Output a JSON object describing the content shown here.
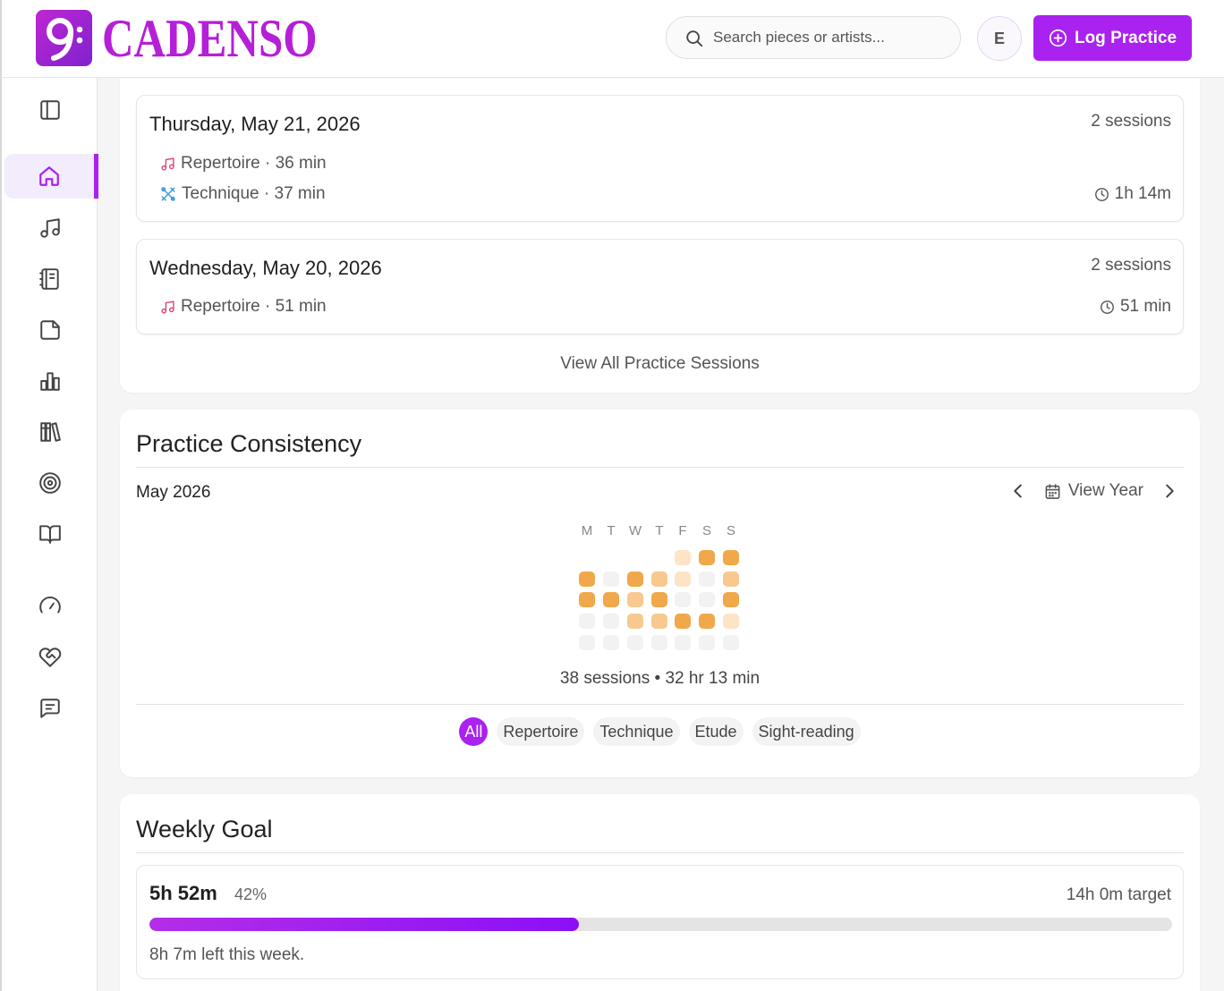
{
  "app": {
    "name": "CADENSO"
  },
  "header": {
    "search_placeholder": "Search pieces or artists...",
    "avatar_initial": "E",
    "log_button_label": "Log Practice"
  },
  "sidebar": {
    "items": [
      {
        "name": "sidebar-toggle",
        "icon": "panel-left-icon"
      },
      {
        "name": "home",
        "icon": "home-icon",
        "active": true
      },
      {
        "name": "repertoire",
        "icon": "music-note-icon"
      },
      {
        "name": "journal",
        "icon": "notebook-icon"
      },
      {
        "name": "notes",
        "icon": "sticky-note-icon"
      },
      {
        "name": "stats",
        "icon": "bar-chart-icon"
      },
      {
        "name": "library",
        "icon": "library-icon"
      },
      {
        "name": "goals",
        "icon": "target-icon"
      },
      {
        "name": "learn",
        "icon": "book-open-icon"
      },
      {
        "name": "metronome",
        "icon": "gauge-icon"
      },
      {
        "name": "favorites",
        "icon": "heart-handshake-icon"
      },
      {
        "name": "feedback",
        "icon": "message-icon"
      }
    ]
  },
  "sessions": [
    {
      "date": "Thursday, May 21, 2026",
      "count": "2 sessions",
      "lines": [
        {
          "category": "Repertoire",
          "text": "Repertoire · 36 min",
          "icon": "music-note-icon"
        },
        {
          "category": "Technique",
          "text": "Technique · 37 min",
          "icon": "tools-icon"
        }
      ],
      "total": "1h 14m"
    },
    {
      "date": "Wednesday, May 20, 2026",
      "count": "2 sessions",
      "lines": [
        {
          "category": "Repertoire",
          "text": "Repertoire · 51 min",
          "icon": "music-note-icon"
        }
      ],
      "total": "51 min"
    }
  ],
  "view_all_label": "View All Practice Sessions",
  "consistency": {
    "title": "Practice Consistency",
    "month": "May 2026",
    "view_year_label": "View Year",
    "day_labels": [
      "M",
      "T",
      "W",
      "T",
      "F",
      "S",
      "S"
    ],
    "levels": [
      [
        null,
        null,
        null,
        null,
        1,
        3,
        3
      ],
      [
        3,
        0,
        3,
        2,
        1,
        0,
        2
      ],
      [
        3,
        3,
        2,
        3,
        0,
        0,
        3
      ],
      [
        0,
        0,
        2,
        2,
        3,
        3,
        1
      ],
      [
        0,
        0,
        0,
        0,
        0,
        0,
        0
      ]
    ],
    "level_colors": [
      "#f2f2f2",
      "#fde4c6",
      "#f7c98f",
      "#f0a84a"
    ],
    "summary": "38 sessions • 32 hr 13 min",
    "filters": [
      "All",
      "Repertoire",
      "Technique",
      "Etude",
      "Sight-reading"
    ],
    "active_filter": "All"
  },
  "weekly_goal": {
    "title": "Weekly Goal",
    "value": "5h 52m",
    "percent_label": "42%",
    "progress": 0.42,
    "target": "14h 0m target",
    "remaining": "8h 7m left this week."
  },
  "colors": {
    "accent": "#a922f0",
    "repertoire_icon": "#e0457b",
    "technique_icon": "#3b9bd6"
  }
}
